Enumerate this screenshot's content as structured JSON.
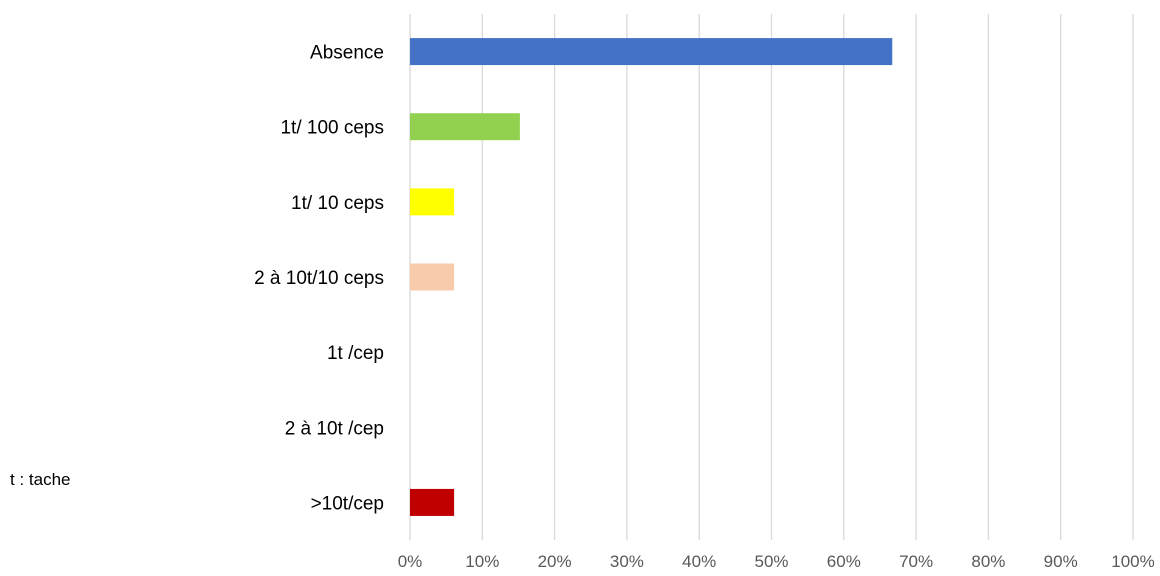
{
  "chart_data": {
    "type": "bar",
    "orientation": "horizontal",
    "categories": [
      "Absence",
      "1t/ 100 ceps",
      "1t/ 10 ceps",
      "2 à 10t/10 ceps",
      "1t /cep",
      "2 à 10t /cep",
      ">10t/cep"
    ],
    "values": [
      0.667,
      0.152,
      0.061,
      0.061,
      0,
      0,
      0.061
    ],
    "colors": [
      "#4472C4",
      "#92D050",
      "#FFFF00",
      "#F8CBAD",
      "#A5A5A5",
      "#A5A5A5",
      "#C00000"
    ],
    "xlim": [
      0,
      1
    ],
    "x_ticks": [
      "0%",
      "10%",
      "20%",
      "30%",
      "40%",
      "50%",
      "60%",
      "70%",
      "80%",
      "90%",
      "100%"
    ],
    "grid": "vertical",
    "legend": "none",
    "title": "",
    "xlabel": "",
    "ylabel": ""
  },
  "note": "t : tache"
}
